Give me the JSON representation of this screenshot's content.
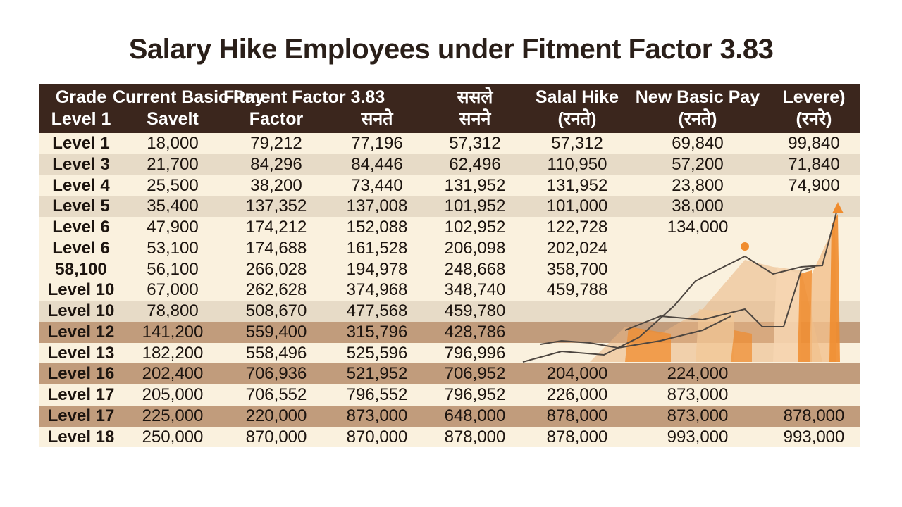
{
  "chart_data": {
    "type": "table",
    "title": "Salary Hike Employees under Fitment Factor 3.83",
    "columns": [
      {
        "line1": "Grade",
        "line2": "Level 1"
      },
      {
        "line1": "Current Basic Pay",
        "line2": "Savelt"
      },
      {
        "line1": "Fitment Factor 3.83",
        "line2": "Factor"
      },
      {
        "line1": "",
        "line2": "सनते"
      },
      {
        "line1": "ससले",
        "line2": "सनने"
      },
      {
        "line1": "Salal Hike",
        "line2": "(रनते)"
      },
      {
        "line1": "New Basic Pay",
        "line2": "(रनते)"
      },
      {
        "line1": "Levere)",
        "line2": "(रनरे)"
      }
    ],
    "rows": [
      [
        "Level 1",
        "18,000",
        "79,212",
        "77,196",
        "57,312",
        "57,312",
        "69,840",
        "99,840"
      ],
      [
        "Level 3",
        "21,700",
        "84,296",
        "84,446",
        "62,496",
        "110,950",
        "57,200",
        "71,840"
      ],
      [
        "Level 4",
        "25,500",
        "38,200",
        "73,440",
        "131,952",
        "131,952",
        "23,800",
        "74,900"
      ],
      [
        "Level 5",
        "35,400",
        "137,352",
        "137,008",
        "101,952",
        "101,000",
        "38,000",
        ""
      ],
      [
        "Level 6",
        "47,900",
        "174,212",
        "152,088",
        "102,952",
        "122,728",
        "134,000",
        ""
      ],
      [
        "Level 6",
        "53,100",
        "174,688",
        "161,528",
        "206,098",
        "202,024",
        "",
        ""
      ],
      [
        "58,100",
        "56,100",
        "266,028",
        "194,978",
        "248,668",
        "358,700",
        "",
        ""
      ],
      [
        "Level 10",
        "67,000",
        "262,628",
        "374,968",
        "348,740",
        "459,788",
        "",
        ""
      ],
      [
        "Level 10",
        "78,800",
        "508,670",
        "477,568",
        "459,780",
        "",
        "",
        ""
      ],
      [
        "Level 12",
        "141,200",
        "559,400",
        "315,796",
        "428,786",
        "",
        "",
        ""
      ],
      [
        "Level 13",
        "182,200",
        "558,496",
        "525,596",
        "796,996",
        "",
        "",
        ""
      ],
      [
        "Level 16",
        "202,400",
        "706,936",
        "521,952",
        "706,952",
        "204,000",
        "224,000",
        ""
      ],
      [
        "Level 17",
        "205,000",
        "706,552",
        "796,552",
        "796,952",
        "226,000",
        "873,000",
        ""
      ],
      [
        "Level 17",
        "225,000",
        "220,000",
        "873,000",
        "648,000",
        "878,000",
        "873,000",
        "878,000"
      ],
      [
        "Level 18",
        "250,000",
        "870,000",
        "870,000",
        "878,000",
        "878,000",
        "993,000",
        "993,000"
      ]
    ],
    "row_bands": [
      "light",
      "medium",
      "light",
      "medium",
      "light",
      "light",
      "light",
      "light",
      "medium",
      "dark",
      "light",
      "dark",
      "light",
      "dark",
      "light"
    ]
  },
  "colors": {
    "header_bg": "#3b261d",
    "band_light": "#faf1de",
    "band_medium": "#e7dbc7",
    "band_dark": "#c19c7c",
    "accent_orange": "#f08c2e",
    "line_dark": "#4d4640"
  }
}
